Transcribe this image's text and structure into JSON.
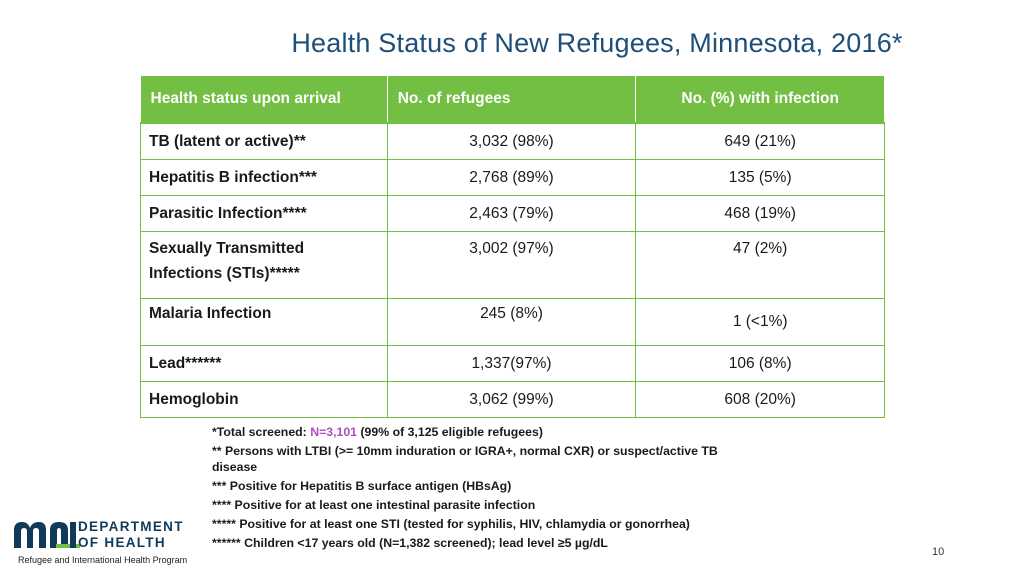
{
  "title": "Health Status of New Refugees, Minnesota, 2016*",
  "table": {
    "headers": [
      "Health status upon arrival",
      "No. of refugees",
      "No. (%) with infection"
    ],
    "rows": [
      {
        "label": "TB (latent or active)**",
        "refugees": "3,032 (98%)",
        "infection": "649 (21%)"
      },
      {
        "label": "Hepatitis B infection***",
        "refugees": "2,768 (89%)",
        "infection": "135 (5%)"
      },
      {
        "label": "Parasitic Infection****",
        "refugees": "2,463 (79%)",
        "infection": "468 (19%)"
      },
      {
        "label": "Sexually Transmitted Infections (STIs)*****",
        "refugees": "3,002 (97%)",
        "infection": "47 (2%)"
      },
      {
        "label": "Malaria Infection",
        "refugees": "245 (8%)",
        "infection": "1 (<1%)"
      },
      {
        "label": "Lead******",
        "refugees": "1,337(97%)",
        "infection": "106 (8%)"
      },
      {
        "label": "Hemoglobin",
        "refugees": "3,062 (99%)",
        "infection": "608 (20%)"
      }
    ]
  },
  "notes": {
    "total_prefix": "*Total screened: ",
    "total_highlight": "N=3,101",
    "total_suffix": " (99% of 3,125 eligible refugees)",
    "ltbi": "** Persons with LTBI (>= 10mm induration or IGRA+, normal CXR) or suspect/active TB disease",
    "hepb": "*** Positive for Hepatitis B surface antigen (HBsAg)",
    "parasite": "**** Positive for at least one intestinal parasite infection",
    "sti": "***** Positive for at least one STI (tested for syphilis, HIV, chlamydia or gonorrhea)",
    "lead": "****** Children <17 years old (N=1,382 screened); lead level ≥5 µg/dL"
  },
  "footer": {
    "logo_line1": "DEPARTMENT",
    "logo_line2": "OF HEALTH",
    "program": "Refugee and International Health Program",
    "page_number": "10"
  },
  "colors": {
    "header_green": "#72bf44",
    "title_blue": "#1f4e79",
    "highlight_purple": "#b04fbf",
    "logo_navy": "#0f3a5a",
    "logo_green": "#72bf44"
  }
}
